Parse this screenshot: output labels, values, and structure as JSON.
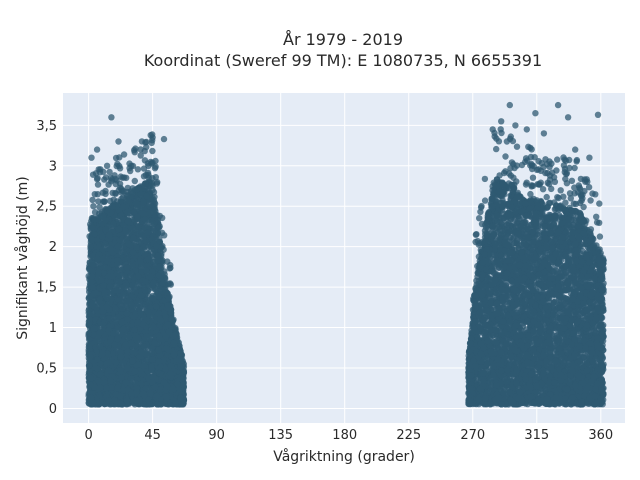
{
  "chart_data": {
    "type": "scatter",
    "title_line1": "År 1979 - 2019",
    "title_line2": "Koordinat (Sweref 99 TM): E 1080735, N 6655391",
    "xlabel": "Vågriktning (grader)",
    "ylabel": "Signifikant våghöjd (m)",
    "xlim": [
      -18,
      377
    ],
    "ylim": [
      -0.18,
      3.9
    ],
    "x_ticks": [
      0,
      45,
      90,
      135,
      180,
      225,
      270,
      315,
      360
    ],
    "y_ticks": [
      0,
      0.5,
      1,
      1.5,
      2,
      2.5,
      3,
      3.5
    ],
    "x_tick_labels": [
      "0",
      "45",
      "90",
      "135",
      "180",
      "225",
      "270",
      "315",
      "360"
    ],
    "y_tick_labels": [
      "0",
      "0,5",
      "1",
      "1,5",
      "2",
      "2,5",
      "3",
      "3,5"
    ],
    "grid": true,
    "plot_bg": "#E5ECF6",
    "marker_color": "#2F5A72",
    "clusters": [
      {
        "x_range": [
          0,
          67
        ],
        "dense_height_max": 2.6
      },
      {
        "x_range": [
          267,
          362
        ],
        "dense_height_max": 2.7
      }
    ],
    "outliers": [
      [
        16,
        3.6
      ],
      [
        6,
        3.2
      ],
      [
        21,
        3.3
      ],
      [
        45,
        3.35
      ],
      [
        53,
        3.33
      ],
      [
        2,
        3.1
      ],
      [
        13,
        3.0
      ],
      [
        30,
        3.0
      ],
      [
        296,
        3.75
      ],
      [
        314,
        3.65
      ],
      [
        330,
        3.75
      ],
      [
        337,
        3.6
      ],
      [
        358,
        3.63
      ],
      [
        290,
        3.55
      ],
      [
        300,
        3.5
      ],
      [
        308,
        3.45
      ],
      [
        320,
        3.4
      ],
      [
        342,
        3.2
      ],
      [
        352,
        3.1
      ],
      [
        284,
        3.45
      ],
      [
        294,
        3.3
      ]
    ]
  }
}
